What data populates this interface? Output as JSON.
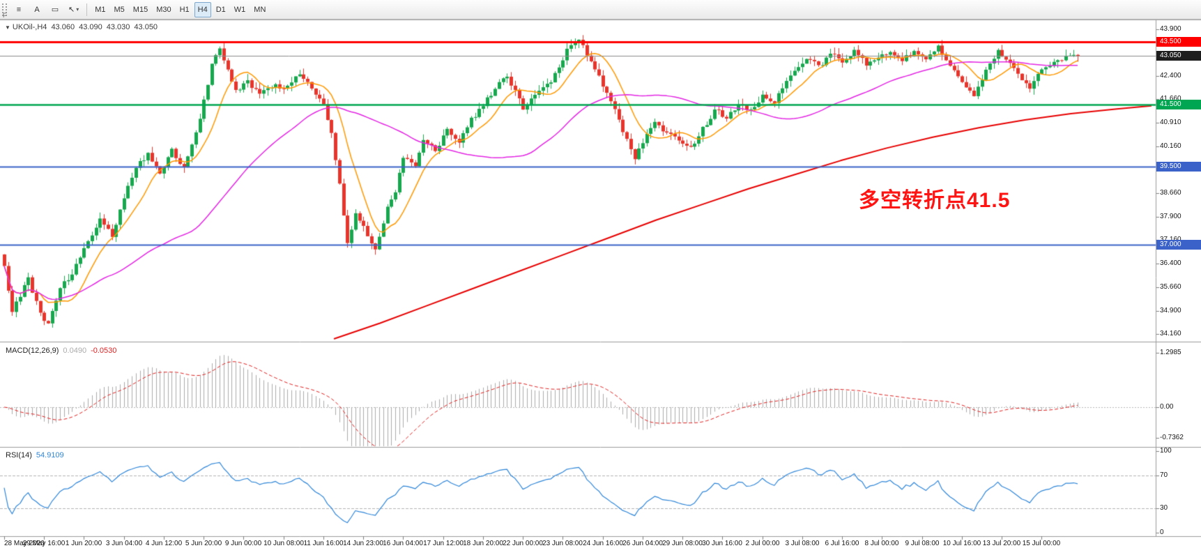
{
  "toolbar": {
    "left_tools": [
      {
        "name": "chart-list",
        "glyph": "≡"
      },
      {
        "name": "text-annotation",
        "glyph": "A"
      },
      {
        "name": "shape-tool",
        "glyph": "▭"
      },
      {
        "name": "cursor-tool",
        "glyph": "↖",
        "caret": "▾"
      }
    ],
    "partial_label": "F",
    "timeframes": [
      "M1",
      "M5",
      "M15",
      "M30",
      "H1",
      "H4",
      "D1",
      "W1",
      "MN"
    ],
    "active_timeframe": "H4"
  },
  "chart_header": {
    "collapse_glyph": "▼",
    "symbol_period": "UKOil-,H4",
    "open": "43.060",
    "high": "43.090",
    "low": "43.030",
    "close": "43.050"
  },
  "annotation": {
    "text": "多空转折点41.5",
    "color": "#FF1414"
  },
  "price_axis": {
    "labels": [
      {
        "text": "43.900",
        "price": 43.9
      },
      {
        "text": "42.400",
        "price": 42.4
      },
      {
        "text": "41.660",
        "price": 41.66
      },
      {
        "text": "40.910",
        "price": 40.91
      },
      {
        "text": "40.160",
        "price": 40.16
      },
      {
        "text": "38.660",
        "price": 38.66
      },
      {
        "text": "37.900",
        "price": 37.9
      },
      {
        "text": "37.160",
        "price": 37.16
      },
      {
        "text": "36.400",
        "price": 36.4
      },
      {
        "text": "35.660",
        "price": 35.66
      },
      {
        "text": "34.900",
        "price": 34.9
      },
      {
        "text": "34.160",
        "price": 34.16
      }
    ]
  },
  "macd_panel": {
    "name": "MACD(12,26,9)",
    "value_main": "0.0490",
    "value_signal": "-0.0530",
    "axis": [
      {
        "text": "1.2985",
        "v": 1.2985
      },
      {
        "text": "0.00",
        "v": 0
      },
      {
        "text": "-0.7362",
        "v": -0.7362
      }
    ],
    "histogram_color": "#ABABAB",
    "signal_color": "#E02020"
  },
  "rsi_panel": {
    "name": "RSI(14)",
    "value": "54.9109",
    "axis": [
      {
        "text": "100",
        "v": 100
      },
      {
        "text": "70",
        "v": 70
      },
      {
        "text": "30",
        "v": 30
      },
      {
        "text": "0",
        "v": 0
      }
    ],
    "levels": [
      70,
      30
    ],
    "line_color": "#2E86D8",
    "level_line_color": "#B4B4B4"
  },
  "time_axis": {
    "labels": [
      "28 May 2020",
      "29 May 16:00",
      "1 Jun 20:00",
      "3 Jun 04:00",
      "4 Jun 12:00",
      "5 Jun 20:00",
      "9 Jun 00:00",
      "10 Jun 08:00",
      "11 Jun 16:00",
      "14 Jun 23:00",
      "16 Jun 04:00",
      "17 Jun 12:00",
      "18 Jun 20:00",
      "22 Jun 00:00",
      "23 Jun 08:00",
      "24 Jun 16:00",
      "26 Jun 04:00",
      "29 Jun 08:00",
      "30 Jun 16:00",
      "2 Jul 00:00",
      "3 Jul 08:00",
      "6 Jul 16:00",
      "8 Jul 00:00",
      "9 Jul 08:00",
      "10 Jul 16:00",
      "13 Jul 20:00",
      "15 Jul 00:00"
    ],
    "candles_per_label": 10
  },
  "chart_data": {
    "type": "candlestick",
    "symbol": "UKOil-",
    "timeframe": "H4",
    "title": "UKOil-,H4",
    "ylim": [
      34.0,
      44.1
    ],
    "ohlc_current": {
      "open": 43.06,
      "high": 43.09,
      "low": 43.03,
      "close": 43.05
    },
    "candle_count": 270,
    "last_close": 43.05,
    "up_color": "#17A74E",
    "down_color": "#E8352C",
    "close_path_anchors": [
      [
        0,
        36.3
      ],
      [
        2,
        34.9
      ],
      [
        4,
        35.4
      ],
      [
        6,
        35.9
      ],
      [
        9,
        34.8
      ],
      [
        11,
        34.5
      ],
      [
        14,
        35.6
      ],
      [
        17,
        36.1
      ],
      [
        20,
        36.9
      ],
      [
        24,
        37.8
      ],
      [
        27,
        37.3
      ],
      [
        30,
        38.5
      ],
      [
        33,
        39.5
      ],
      [
        36,
        39.9
      ],
      [
        39,
        39.3
      ],
      [
        42,
        40.0
      ],
      [
        45,
        39.5
      ],
      [
        48,
        40.6
      ],
      [
        50,
        41.6
      ],
      [
        52,
        42.8
      ],
      [
        54,
        43.3
      ],
      [
        56,
        42.6
      ],
      [
        58,
        41.9
      ],
      [
        61,
        42.2
      ],
      [
        64,
        41.9
      ],
      [
        67,
        42.1
      ],
      [
        70,
        42.0
      ],
      [
        74,
        42.5
      ],
      [
        77,
        42.0
      ],
      [
        80,
        41.5
      ],
      [
        82,
        40.6
      ],
      [
        84,
        38.9
      ],
      [
        86,
        37.0
      ],
      [
        88,
        38.0
      ],
      [
        91,
        37.3
      ],
      [
        93,
        36.9
      ],
      [
        96,
        38.2
      ],
      [
        98,
        38.7
      ],
      [
        100,
        39.8
      ],
      [
        103,
        39.5
      ],
      [
        105,
        40.4
      ],
      [
        108,
        40.0
      ],
      [
        111,
        40.7
      ],
      [
        114,
        40.3
      ],
      [
        117,
        41.0
      ],
      [
        120,
        41.5
      ],
      [
        123,
        42.0
      ],
      [
        126,
        42.4
      ],
      [
        128,
        41.9
      ],
      [
        130,
        41.4
      ],
      [
        133,
        41.8
      ],
      [
        136,
        42.1
      ],
      [
        139,
        42.6
      ],
      [
        141,
        43.2
      ],
      [
        144,
        43.6
      ],
      [
        146,
        43.1
      ],
      [
        149,
        42.4
      ],
      [
        152,
        41.6
      ],
      [
        155,
        40.6
      ],
      [
        158,
        39.8
      ],
      [
        160,
        40.3
      ],
      [
        163,
        40.9
      ],
      [
        166,
        40.6
      ],
      [
        169,
        40.3
      ],
      [
        172,
        40.1
      ],
      [
        175,
        40.7
      ],
      [
        178,
        41.3
      ],
      [
        181,
        41.1
      ],
      [
        184,
        41.5
      ],
      [
        187,
        41.3
      ],
      [
        190,
        41.8
      ],
      [
        193,
        41.6
      ],
      [
        196,
        42.3
      ],
      [
        199,
        42.7
      ],
      [
        201,
        43.0
      ],
      [
        204,
        42.7
      ],
      [
        207,
        43.1
      ],
      [
        210,
        42.9
      ],
      [
        213,
        43.2
      ],
      [
        216,
        42.8
      ],
      [
        219,
        43.0
      ],
      [
        222,
        43.2
      ],
      [
        225,
        42.9
      ],
      [
        228,
        43.2
      ],
      [
        231,
        43.0
      ],
      [
        234,
        43.3
      ],
      [
        237,
        42.7
      ],
      [
        240,
        42.2
      ],
      [
        243,
        41.8
      ],
      [
        246,
        42.6
      ],
      [
        249,
        43.2
      ],
      [
        252,
        42.8
      ],
      [
        255,
        42.3
      ],
      [
        257,
        42.0
      ],
      [
        260,
        42.6
      ],
      [
        263,
        42.9
      ],
      [
        266,
        43.0
      ],
      [
        269,
        43.05
      ]
    ],
    "levels": [
      {
        "price": 43.5,
        "badge": "43.500",
        "color": "#FF0000",
        "width": 3
      },
      {
        "price": 43.05,
        "badge": "43.050",
        "color": "#8A8A8A",
        "width": 1,
        "badge_bg": "#1E1E1E"
      },
      {
        "price": 41.5,
        "badge": "41.500",
        "color": "#00A651",
        "width": 2.5
      },
      {
        "price": 39.5,
        "badge": "39.500",
        "color": "#3A62C8",
        "width": 2
      },
      {
        "price": 37.0,
        "badge": "37.000",
        "color": "#3A62C8",
        "width": 2
      }
    ],
    "moving_averages": [
      {
        "name": "fast-ma",
        "type": "sma",
        "period": 10,
        "color": "#FF9900",
        "width": 1.5
      },
      {
        "name": "medium-ma",
        "type": "sma",
        "period": 48,
        "color": "#E326E3",
        "width": 1.5
      },
      {
        "name": "slow-ma",
        "type": "path",
        "color": "#E80000",
        "width": 2,
        "anchors_frac_price": [
          [
            0.29,
            34.0
          ],
          [
            0.33,
            34.5
          ],
          [
            0.37,
            35.05
          ],
          [
            0.41,
            35.6
          ],
          [
            0.45,
            36.15
          ],
          [
            0.49,
            36.7
          ],
          [
            0.53,
            37.25
          ],
          [
            0.57,
            37.8
          ],
          [
            0.61,
            38.3
          ],
          [
            0.65,
            38.8
          ],
          [
            0.69,
            39.25
          ],
          [
            0.73,
            39.7
          ],
          [
            0.77,
            40.1
          ],
          [
            0.81,
            40.45
          ],
          [
            0.85,
            40.75
          ],
          [
            0.89,
            41.0
          ],
          [
            0.93,
            41.2
          ],
          [
            0.97,
            41.35
          ],
          [
            1.0,
            41.45
          ]
        ]
      }
    ],
    "indicators": [
      {
        "name": "MACD",
        "params": "12,26,9",
        "current_main": 0.049,
        "current_signal": -0.053,
        "scale_max": 1.2985,
        "scale_min": -0.7362
      },
      {
        "name": "RSI",
        "params": "14",
        "current": 54.9109,
        "scale": [
          0,
          100
        ],
        "levels": [
          30,
          70
        ]
      }
    ]
  }
}
